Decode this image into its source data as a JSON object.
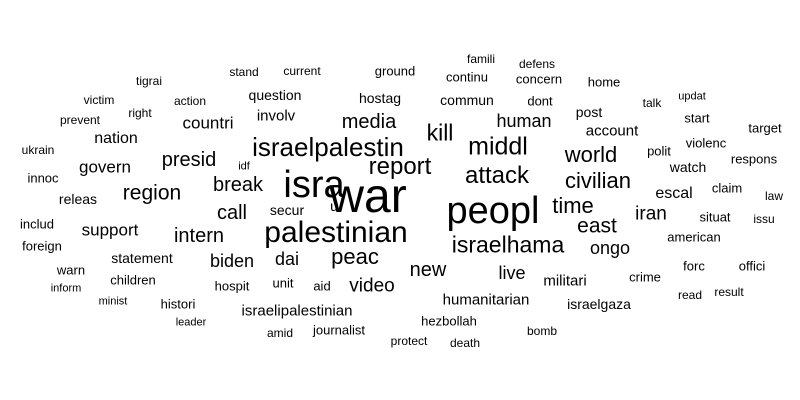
{
  "text_color": "#000000",
  "background_color": "#ffffff",
  "words": [
    {
      "text": "war"
    },
    {
      "text": "peopl"
    },
    {
      "text": "isra"
    },
    {
      "text": "palestinian"
    },
    {
      "text": "israelpalestin"
    },
    {
      "text": "attack"
    },
    {
      "text": "report"
    },
    {
      "text": "israelhama"
    },
    {
      "text": "middl"
    },
    {
      "text": "kill"
    },
    {
      "text": "peac"
    },
    {
      "text": "world"
    },
    {
      "text": "civilian"
    },
    {
      "text": "time"
    },
    {
      "text": "east"
    },
    {
      "text": "region"
    },
    {
      "text": "presid"
    },
    {
      "text": "break"
    },
    {
      "text": "call"
    },
    {
      "text": "intern"
    },
    {
      "text": "media"
    },
    {
      "text": "human"
    },
    {
      "text": "new"
    },
    {
      "text": "biden"
    },
    {
      "text": "dai"
    },
    {
      "text": "video"
    },
    {
      "text": "live"
    },
    {
      "text": "ongo"
    },
    {
      "text": "iran"
    },
    {
      "text": "support"
    },
    {
      "text": "govern"
    },
    {
      "text": "countri"
    },
    {
      "text": "escal"
    },
    {
      "text": "humanitarian"
    },
    {
      "text": "militari"
    },
    {
      "text": "nation"
    },
    {
      "text": "account"
    },
    {
      "text": "watch"
    },
    {
      "text": "involv"
    },
    {
      "text": "statement"
    },
    {
      "text": "releas"
    },
    {
      "text": "secur"
    },
    {
      "text": "u."
    },
    {
      "text": "commun"
    },
    {
      "text": "hostag"
    },
    {
      "text": "question"
    },
    {
      "text": "post"
    },
    {
      "text": "dont"
    },
    {
      "text": "violenc"
    },
    {
      "text": "polit"
    },
    {
      "text": "claim"
    },
    {
      "text": "situat"
    },
    {
      "text": "american"
    },
    {
      "text": "crime"
    },
    {
      "text": "forc"
    },
    {
      "text": "offici"
    },
    {
      "text": "unit"
    },
    {
      "text": "aid"
    },
    {
      "text": "hospit"
    },
    {
      "text": "israelipalestinian"
    },
    {
      "text": "journalist"
    },
    {
      "text": "hezbollah"
    },
    {
      "text": "israelgaza"
    },
    {
      "text": "children"
    },
    {
      "text": "histori"
    },
    {
      "text": "warn"
    },
    {
      "text": "foreign"
    },
    {
      "text": "includ"
    },
    {
      "text": "innoc"
    },
    {
      "text": "ukrain"
    },
    {
      "text": "prevent"
    },
    {
      "text": "victim"
    },
    {
      "text": "right"
    },
    {
      "text": "action"
    },
    {
      "text": "tigrai"
    },
    {
      "text": "stand"
    },
    {
      "text": "current"
    },
    {
      "text": "ground"
    },
    {
      "text": "famili"
    },
    {
      "text": "continu"
    },
    {
      "text": "defens"
    },
    {
      "text": "concern"
    },
    {
      "text": "home"
    },
    {
      "text": "talk"
    },
    {
      "text": "updat"
    },
    {
      "text": "start"
    },
    {
      "text": "target"
    },
    {
      "text": "respons"
    },
    {
      "text": "law"
    },
    {
      "text": "issu"
    },
    {
      "text": "idf"
    },
    {
      "text": "inform"
    },
    {
      "text": "minist"
    },
    {
      "text": "leader"
    },
    {
      "text": "amid"
    },
    {
      "text": "protect"
    },
    {
      "text": "death"
    },
    {
      "text": "bomb"
    },
    {
      "text": "read"
    },
    {
      "text": "result"
    }
  ]
}
